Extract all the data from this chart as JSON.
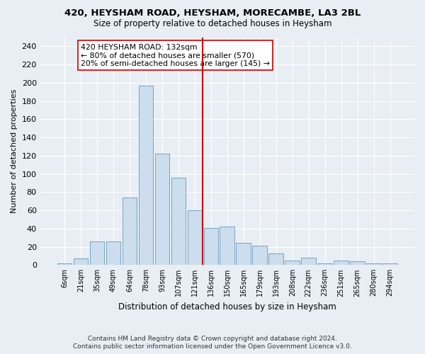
{
  "title": "420, HEYSHAM ROAD, HEYSHAM, MORECAMBE, LA3 2BL",
  "subtitle": "Size of property relative to detached houses in Heysham",
  "xlabel": "Distribution of detached houses by size in Heysham",
  "ylabel": "Number of detached properties",
  "categories": [
    "6sqm",
    "21sqm",
    "35sqm",
    "49sqm",
    "64sqm",
    "78sqm",
    "93sqm",
    "107sqm",
    "121sqm",
    "136sqm",
    "150sqm",
    "165sqm",
    "179sqm",
    "193sqm",
    "208sqm",
    "222sqm",
    "236sqm",
    "251sqm",
    "265sqm",
    "280sqm",
    "294sqm"
  ],
  "bar_heights": [
    2,
    7,
    26,
    26,
    74,
    197,
    122,
    96,
    60,
    41,
    42,
    24,
    21,
    13,
    5,
    8,
    2,
    5,
    4,
    2,
    2
  ],
  "bar_color": "#ccdded",
  "bar_edge_color": "#6699bb",
  "vline_pos": 8.5,
  "vline_color": "#cc0000",
  "annotation_text": "420 HEYSHAM ROAD: 132sqm\n← 80% of detached houses are smaller (570)\n20% of semi-detached houses are larger (145) →",
  "annotation_box_color": "white",
  "annotation_box_edge": "#cc0000",
  "ylim": [
    0,
    250
  ],
  "yticks": [
    0,
    20,
    40,
    60,
    80,
    100,
    120,
    140,
    160,
    180,
    200,
    220,
    240
  ],
  "footer": "Contains HM Land Registry data © Crown copyright and database right 2024.\nContains public sector information licensed under the Open Government Licence v3.0.",
  "bg_color": "#e8eef4",
  "grid_color": "#ffffff"
}
